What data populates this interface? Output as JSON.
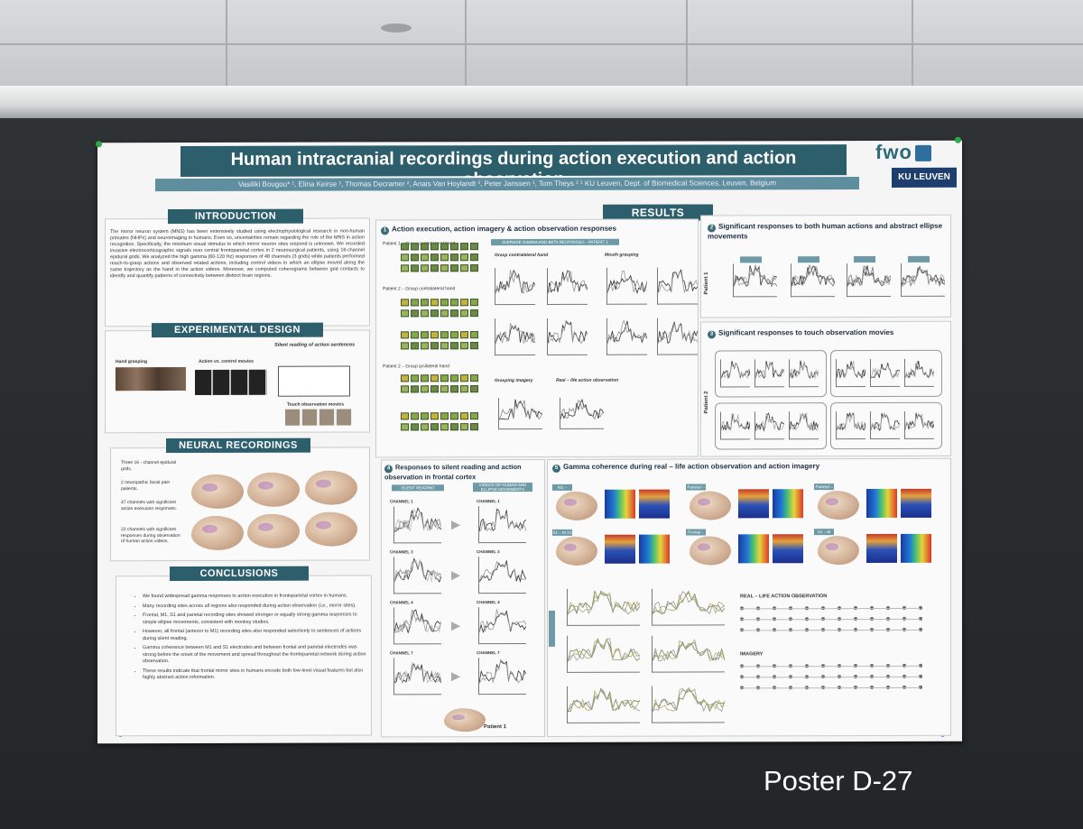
{
  "poster": {
    "title": "Human intracranial recordings during action execution and action observation",
    "authors": "Vasiliki Bougou* ¹, Elina Keirse ¹, Thomas Decramer ², Anais Van Hoylandt ², Peter Janssen ¹, Tom Theys ²      ¹ KU Leuven, Dept. of Biomedical Sciences, Leuven, Belgium",
    "logo_text": "fwo",
    "university": "KU LEUVEN"
  },
  "introduction": {
    "header": "INTRODUCTION",
    "body": "The mirror neuron system (MNS) has been extensively studied using electrophysiological research in non-human primates (NHPs) and neuroimaging in humans. Even so, uncertainties remain regarding the role of the MNS in action recognition. Specifically, the minimum visual stimulus to which mirror neuron sites respond is unknown. We recorded invasive electrocorticographic signals over central frontoparietal cortex in 2 neurosurgical patients, using 16-channel epidural grids. We analyzed the high gamma (60-120 Hz) responses of 48 channels (3 grids) while patients performed reach-to-grasp actions and observed related actions, including control videos in which an ellipse moved along the same trajectory as the hand in the action videos. Moreover, we computed coherograms between grid contacts to identify and quantify patterns of connectivity between distinct brain regions."
  },
  "experimental_design": {
    "header": "EXPERIMENTAL DESIGN",
    "silent_reading": "Silent reading of action sentences",
    "hand_grasping": "Hand grasping",
    "action_vs_control": "Action vs. control movies",
    "touch_observation": "Touch observation movies"
  },
  "neural_recordings": {
    "header": "NEURAL RECORDINGS",
    "bullets": [
      "Three 16 - channel epidural grids.",
      "2 neuropathic facial pain patients.",
      "47 channels with significant action execution responses.",
      "22 channels with significant responses during observation of human action videos."
    ]
  },
  "conclusions": {
    "header": "CONCLUSIONS",
    "bullets": [
      "We found widespread gamma responses to action execution in frontoparietal cortex in humans.",
      "Many recording sites across all regions also responded during action observation (i.e., mirror sites).",
      "Frontal, M1, S1 and parietal recording sites showed stronger or equally strong gamma responses to simple ellipse movements, consistent with monkey studies.",
      "However, all frontal (anterior to M1) recording sites also responded selectively to sentences of actions during silent reading.",
      "Gamma coherence between M1 and S1 electrodes and between frontal and parietal electrodes was strong before the onset of the movement and spread throughout the frontoparietal network during action observation.",
      "These results indicate that frontal mirror sites in humans encode both low-level visual features but also highly abstract action information."
    ]
  },
  "results": {
    "header": "RESULTS",
    "s1": {
      "num": "1",
      "title": "Action execution, action imagery & action observation responses",
      "p1": "Patient 1 – Grasp contralateral hand",
      "p2": "Patient 2 – Grasp contralateral hand",
      "p3": "Patient 2 – Grasp ipsilateral hand",
      "avg": "AVERAGE GAMMA AND BETA RESPONSES - PATIENT 1",
      "grasp_contra": "Grasp contralateral hand",
      "mouth": "Mouth grasping",
      "imagery": "Grasping imagery",
      "real_life": "Real – life action observation"
    },
    "s2": {
      "num": "2",
      "title": "Significant responses to both human actions and abstract ellipse movements",
      "patient": "Patient 1"
    },
    "s3": {
      "num": "3",
      "title": "Significant responses to touch observation movies",
      "patient": "Patient 2"
    },
    "s4": {
      "num": "4",
      "title": "Responses to silent reading and action observation in frontal cortex",
      "left": "SILENT READING",
      "right": "VIDEOS OF HUMAN AND ELLIPSE MOVEMENTS",
      "channels": [
        "CHANNEL 1",
        "CHANNEL 3",
        "CHANNEL 4",
        "CHANNEL 7"
      ],
      "patient": "Patient 1"
    },
    "s5": {
      "num": "5",
      "title": "Gamma coherence during real – life action observation and action imagery",
      "pairs": [
        "M1 – Frontal",
        "Parietal – M1 S1",
        "Parietal – M Frontal",
        "S1 – M S1",
        "Frontal – M S1",
        "S1 – M Frontal"
      ],
      "obs": "REAL – LIFE ACTION OBSERVATION",
      "imagery": "IMAGERY"
    }
  },
  "caption": "Poster D-27",
  "colors": {
    "header": "#2c5e6c",
    "board": "#26292b"
  }
}
